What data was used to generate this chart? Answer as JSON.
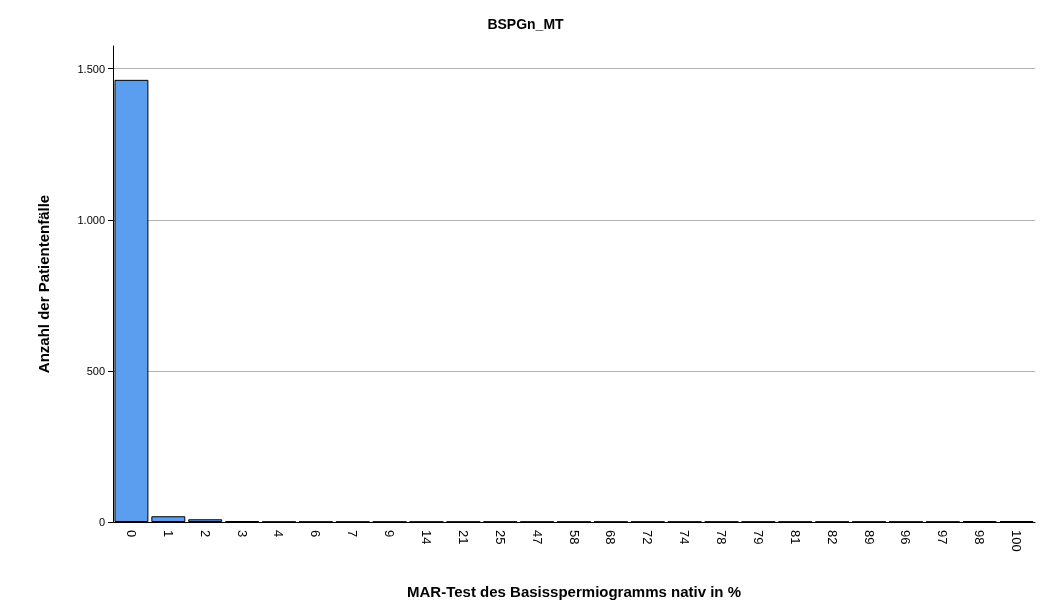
{
  "chart_data": {
    "type": "bar",
    "title": "BSPGn_MT",
    "xlabel": "MAR-Test des Basisspermiogramms nativ in %",
    "ylabel": "Anzahl der Patientenfälle",
    "categories": [
      "0",
      "1",
      "2",
      "3",
      "4",
      "6",
      "7",
      "9",
      "14",
      "21",
      "25",
      "47",
      "58",
      "68",
      "72",
      "74",
      "78",
      "79",
      "81",
      "82",
      "89",
      "96",
      "97",
      "98",
      "100"
    ],
    "values": [
      1463,
      19,
      9,
      3,
      1,
      1,
      1,
      1,
      1,
      1,
      1,
      1,
      1,
      1,
      1,
      1,
      1,
      1,
      1,
      1,
      1,
      1,
      1,
      3,
      3
    ],
    "color": "#5b9ef0",
    "ylim": [
      0,
      1575
    ],
    "yticks": [
      {
        "value": 0,
        "label": "0"
      },
      {
        "value": 500,
        "label": "500"
      },
      {
        "value": 1000,
        "label": "1.000"
      },
      {
        "value": 1500,
        "label": "1.500"
      }
    ],
    "grid": "y"
  }
}
